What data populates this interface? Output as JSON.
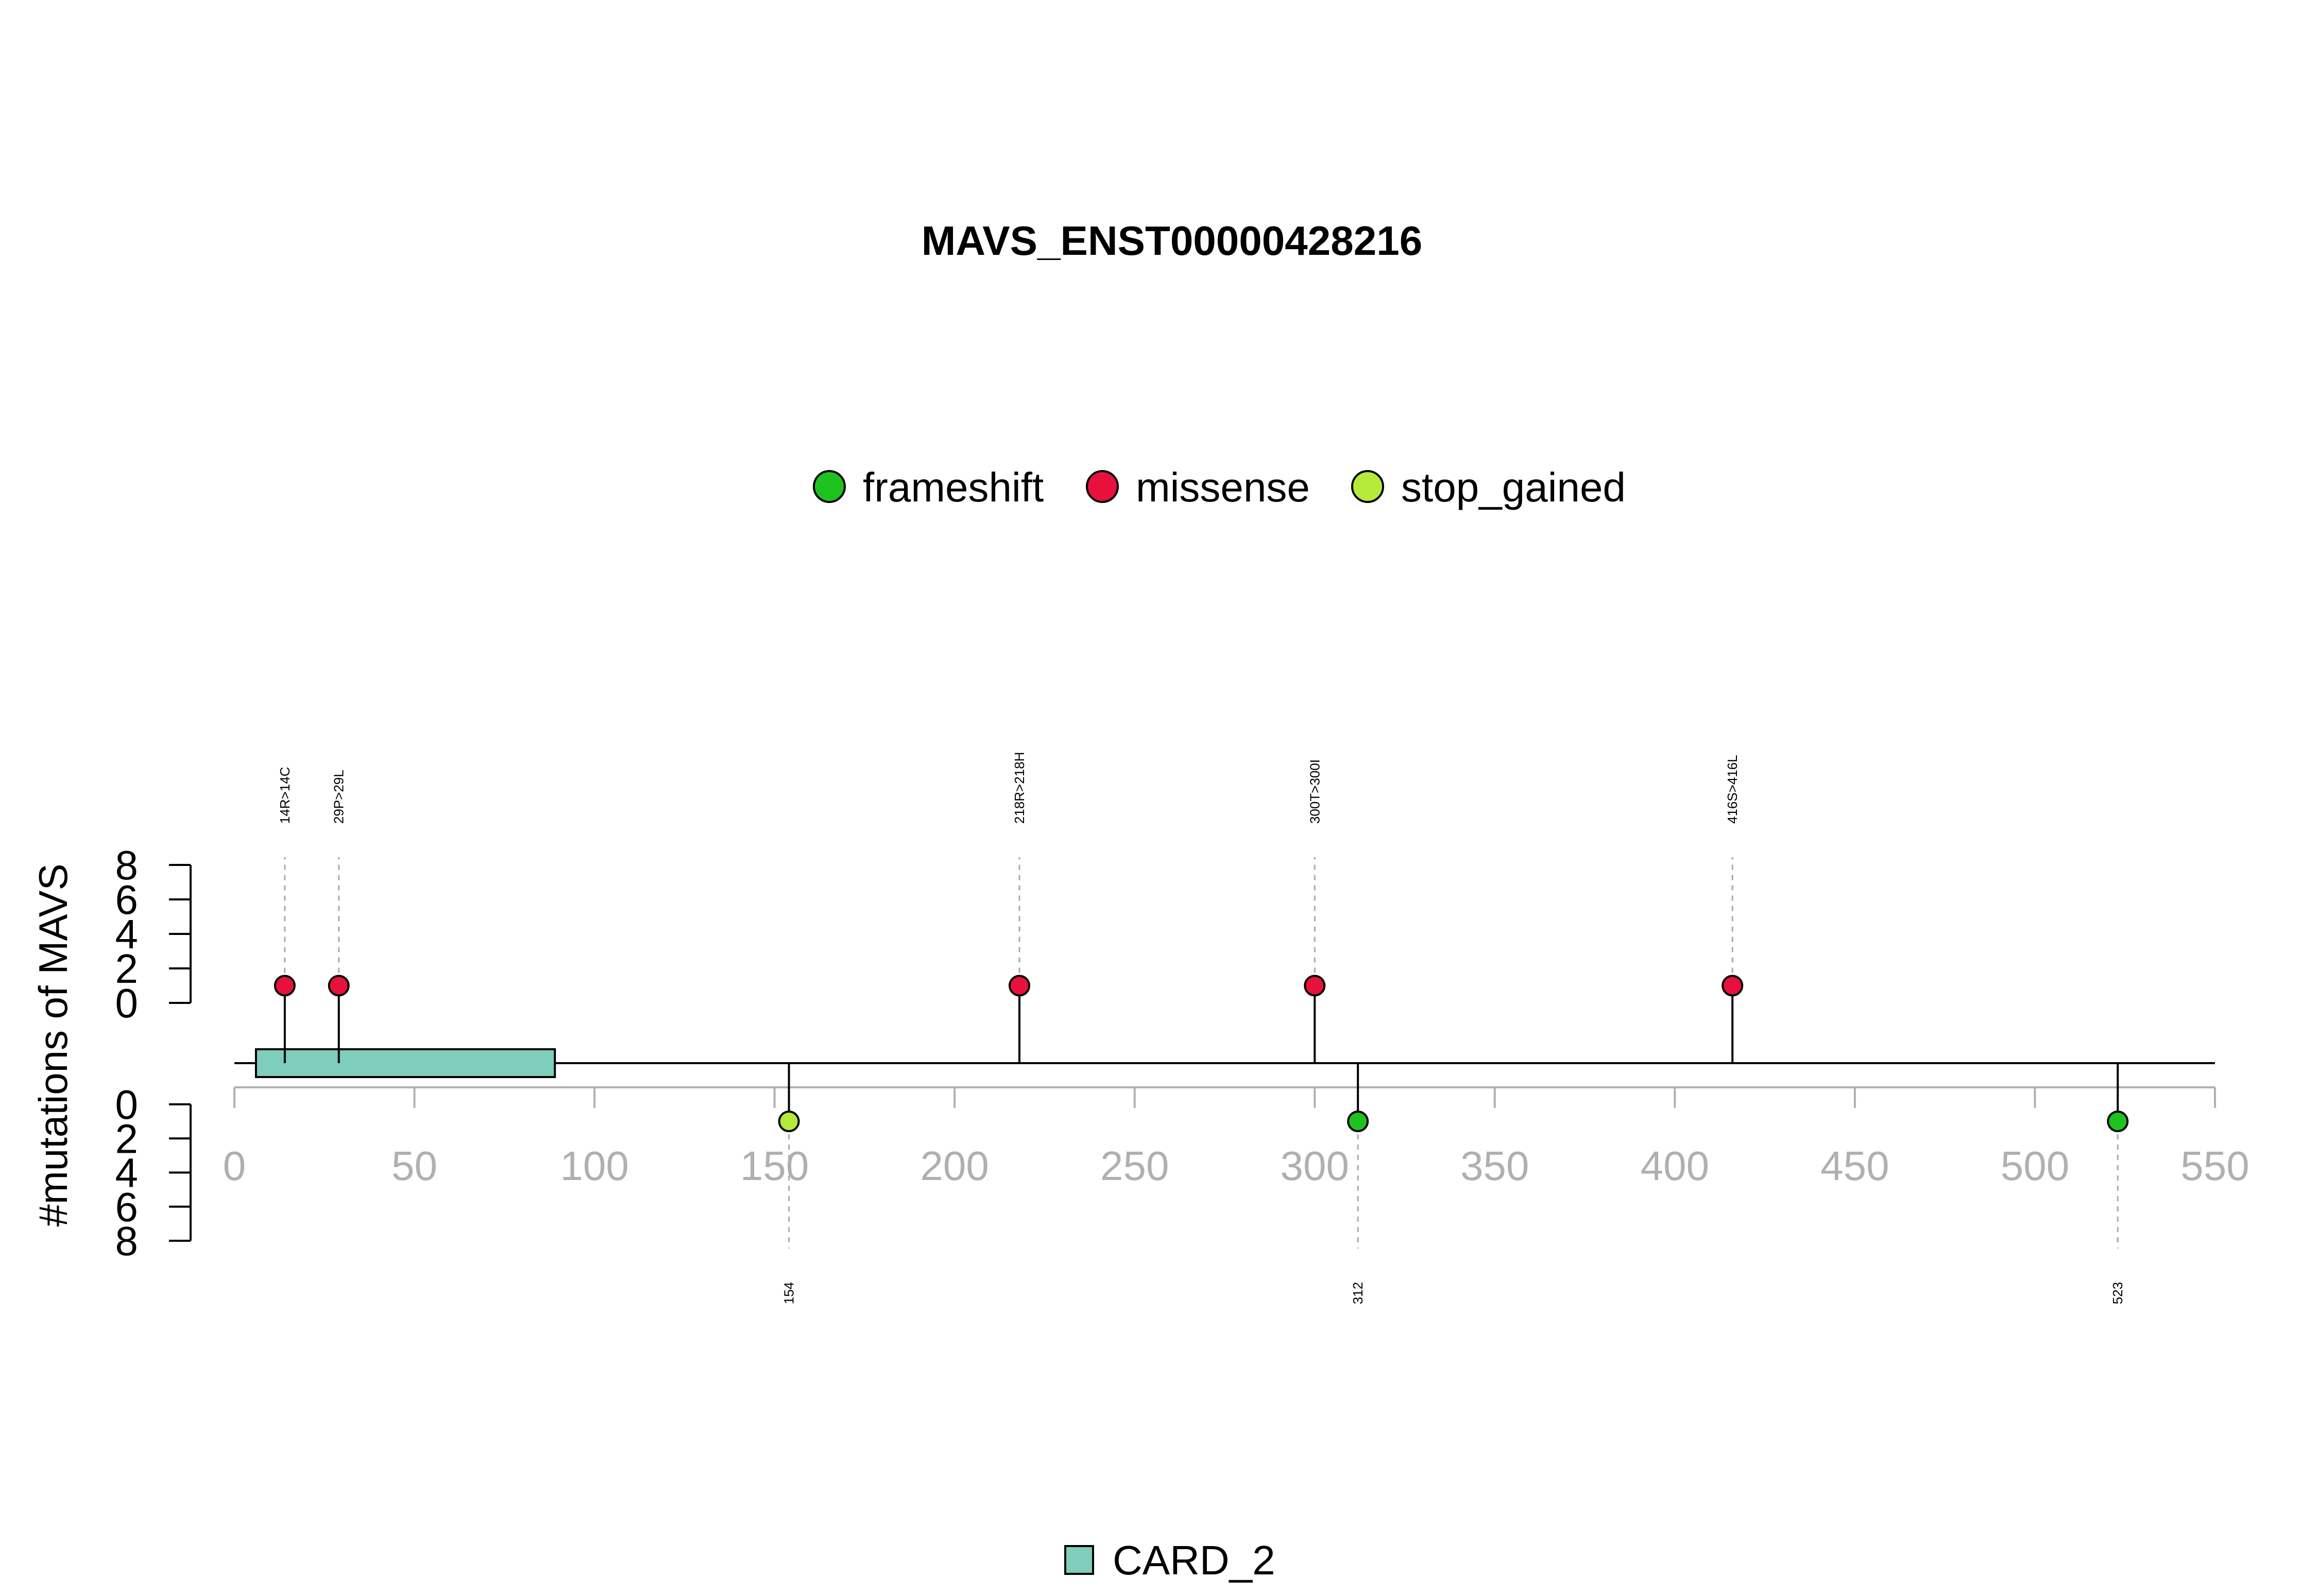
{
  "chart_data": {
    "type": "lollipop",
    "title": "MAVS_ENST00000428216",
    "ylabel": "#mutations of MAVS",
    "x_ticks": [
      0,
      50,
      100,
      150,
      200,
      250,
      300,
      350,
      400,
      450,
      500,
      550
    ],
    "xlim": [
      0,
      550
    ],
    "y_ticks": [
      0,
      2,
      4,
      6,
      8
    ],
    "ylim": [
      0,
      8
    ],
    "legend": [
      {
        "name": "frameshift",
        "color": "#1ec21e"
      },
      {
        "name": "missense",
        "color": "#e8103c"
      },
      {
        "name": "stop_gained",
        "color": "#b5ea3a"
      }
    ],
    "domain_legend": [
      {
        "name": "CARD_2",
        "color": "#7fcdbb"
      }
    ],
    "domains": [
      {
        "name": "CARD_2",
        "start": 6,
        "end": 89
      }
    ],
    "mutations_above": [
      {
        "position": 14,
        "label": "14R>14C",
        "type": "missense",
        "count": 1
      },
      {
        "position": 29,
        "label": "29P>29L",
        "type": "missense",
        "count": 1
      },
      {
        "position": 218,
        "label": "218R>218H",
        "type": "missense",
        "count": 1
      },
      {
        "position": 300,
        "label": "300T>300I",
        "type": "missense",
        "count": 1
      },
      {
        "position": 416,
        "label": "416S>416L",
        "type": "missense",
        "count": 1
      }
    ],
    "mutations_below": [
      {
        "position": 154,
        "label": "154",
        "type": "stop_gained",
        "count": 1
      },
      {
        "position": 312,
        "label": "312",
        "type": "frameshift",
        "count": 1
      },
      {
        "position": 523,
        "label": "523",
        "type": "frameshift",
        "count": 1
      }
    ]
  }
}
